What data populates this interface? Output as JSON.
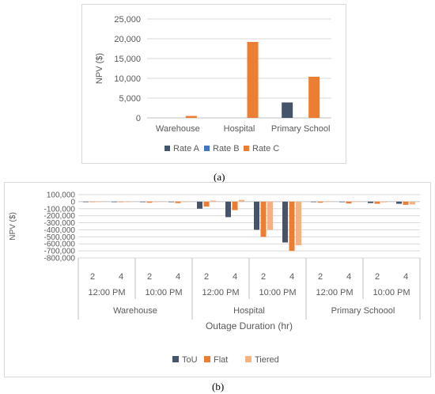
{
  "captions": {
    "a": "(a)",
    "b": "(b)"
  },
  "colors": {
    "dark": "#44546a",
    "blue": "#4472c4",
    "orange": "#ed7d31",
    "light_orange": "#f4b183",
    "grid": "#d9d9d9",
    "axis": "#bfbfbf",
    "text": "#595959"
  },
  "chart_data": [
    {
      "type": "bar",
      "categories": [
        "Warehouse",
        "Hospital",
        "Primary School"
      ],
      "ylabel": "NPV ($)",
      "xlabel": "",
      "ylim": [
        0,
        25000
      ],
      "yticks": [
        "0",
        "5,000",
        "10,000",
        "15,000",
        "20,000",
        "25,000"
      ],
      "ytick_values": [
        0,
        5000,
        10000,
        15000,
        20000,
        25000
      ],
      "grid": true,
      "legend_position": "bottom",
      "series": [
        {
          "name": "Rate A",
          "color": "#44546a",
          "values": [
            0,
            0,
            3900
          ]
        },
        {
          "name": "Rate B",
          "color": "#4472c4",
          "values": [
            0,
            0,
            0
          ]
        },
        {
          "name": "Rate C",
          "color": "#ed7d31",
          "values": [
            500,
            19200,
            10400
          ]
        }
      ]
    },
    {
      "type": "bar",
      "ylabel": "NPV ($)",
      "xlabel": "Outage Duration (hr)",
      "ylim": [
        -800000,
        100000
      ],
      "yticks": [
        "100,000",
        "0",
        "-100,000",
        "-200,000",
        "-300,000",
        "-400,000",
        "-500,000",
        "-600,000",
        "-700,000",
        "-800,000"
      ],
      "ytick_values": [
        100000,
        0,
        -100000,
        -200000,
        -300000,
        -400000,
        -500000,
        -600000,
        -700000,
        -800000
      ],
      "grid": true,
      "legend_position": "bottom",
      "categories": [
        "2",
        "4",
        "2",
        "4",
        "2",
        "4",
        "2",
        "4",
        "2",
        "4",
        "2",
        "4"
      ],
      "time_groups": [
        "12:00 PM",
        "10:00 PM",
        "12:00 PM",
        "10:00 PM",
        "12:00 PM",
        "10:00 PM"
      ],
      "facility_groups": [
        "Warehouse",
        "Hospital",
        "Primary Schoool"
      ],
      "series": [
        {
          "name": "ToU",
          "color": "#44546a",
          "values": [
            -1000,
            -1500,
            -2000,
            -3000,
            -100000,
            -220000,
            -400000,
            -580000,
            -2000,
            -3000,
            -20000,
            -30000
          ]
        },
        {
          "name": "Flat",
          "color": "#ed7d31",
          "values": [
            -1500,
            -2500,
            -15000,
            -20000,
            -70000,
            -120000,
            -500000,
            -700000,
            -15000,
            -25000,
            -30000,
            -45000
          ]
        },
        {
          "name": "Tiered",
          "color": "#f4b183",
          "values": [
            -500,
            -800,
            -3000,
            -5000,
            15000,
            25000,
            -400000,
            -620000,
            5000,
            3000,
            -10000,
            -40000
          ]
        }
      ]
    }
  ]
}
